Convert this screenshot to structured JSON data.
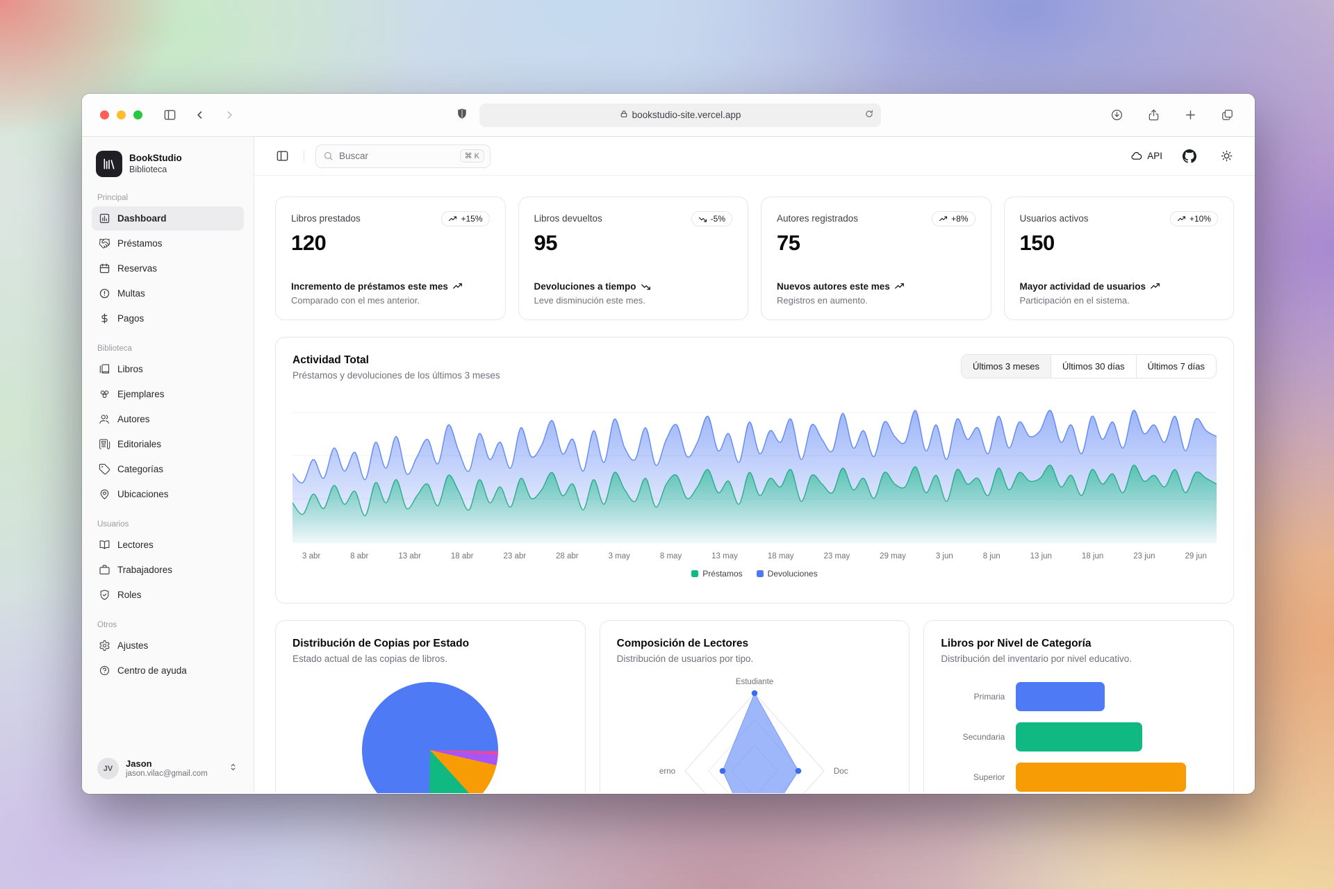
{
  "browser": {
    "url": "bookstudio-site.vercel.app",
    "controls": [
      "close",
      "minimize",
      "zoom",
      "sidebar",
      "back",
      "forward",
      "privacy-shield",
      "reload",
      "downloads",
      "share",
      "new-tab",
      "tab-overview"
    ]
  },
  "app": {
    "brand": {
      "name": "BookStudio",
      "subtitle": "Biblioteca"
    },
    "search": {
      "placeholder": "Buscar",
      "shortcut": "⌘ K"
    },
    "topbar": {
      "api_label": "API"
    },
    "sidebar": {
      "sections": [
        {
          "label": "Principal",
          "items": [
            {
              "label": "Dashboard",
              "icon": "chart-column",
              "active": true
            },
            {
              "label": "Préstamos",
              "icon": "handshake",
              "active": false
            },
            {
              "label": "Reservas",
              "icon": "calendar",
              "active": false
            },
            {
              "label": "Multas",
              "icon": "alert-circle",
              "active": false
            },
            {
              "label": "Pagos",
              "icon": "dollar",
              "active": false
            }
          ]
        },
        {
          "label": "Biblioteca",
          "items": [
            {
              "label": "Libros",
              "icon": "book-copy",
              "active": false
            },
            {
              "label": "Ejemplares",
              "icon": "circles",
              "active": false
            },
            {
              "label": "Autores",
              "icon": "users",
              "active": false
            },
            {
              "label": "Editoriales",
              "icon": "newspaper",
              "active": false
            },
            {
              "label": "Categorías",
              "icon": "tag",
              "active": false
            },
            {
              "label": "Ubicaciones",
              "icon": "map-pin",
              "active": false
            }
          ]
        },
        {
          "label": "Usuarios",
          "items": [
            {
              "label": "Lectores",
              "icon": "book-open",
              "active": false
            },
            {
              "label": "Trabajadores",
              "icon": "briefcase",
              "active": false
            },
            {
              "label": "Roles",
              "icon": "shield-check",
              "active": false
            }
          ]
        },
        {
          "label": "Otros",
          "items": [
            {
              "label": "Ajustes",
              "icon": "settings",
              "active": false
            },
            {
              "label": "Centro de ayuda",
              "icon": "help-circle",
              "active": false
            }
          ]
        }
      ],
      "user": {
        "initials": "JV",
        "name": "Jason",
        "email": "jason.vilac@gmail.com"
      }
    },
    "stats": [
      {
        "title": "Libros prestados",
        "badge": "+15%",
        "trend": "up",
        "value": "120",
        "line1": "Incremento de préstamos este mes",
        "line2": "Comparado con el mes anterior."
      },
      {
        "title": "Libros devueltos",
        "badge": "-5%",
        "trend": "down",
        "value": "95",
        "line1": "Devoluciones a tiempo",
        "line2": "Leve disminución este mes."
      },
      {
        "title": "Autores registrados",
        "badge": "+8%",
        "trend": "up",
        "value": "75",
        "line1": "Nuevos autores este mes",
        "line2": "Registros en aumento."
      },
      {
        "title": "Usuarios activos",
        "badge": "+10%",
        "trend": "up",
        "value": "150",
        "line1": "Mayor actividad de usuarios",
        "line2": "Participación en el sistema."
      }
    ],
    "activity_tabs": [
      {
        "label": "Últimos 3 meses",
        "active": true
      },
      {
        "label": "Últimos 30 días",
        "active": false
      },
      {
        "label": "Últimos 7 días",
        "active": false
      }
    ]
  },
  "colors": {
    "blue": "#4e7af5",
    "green": "#10b981",
    "orange": "#f89c05",
    "purple": "#a855f7",
    "pink": "#ec4899",
    "accent_text": "#18181b"
  },
  "chart_data": [
    {
      "type": "area",
      "title": "Actividad Total",
      "subtitle": "Préstamos y devoluciones de los últimos 3 meses",
      "x_ticks": [
        "3 abr",
        "8 abr",
        "13 abr",
        "18 abr",
        "23 abr",
        "28 abr",
        "3 may",
        "8 may",
        "13 may",
        "18 may",
        "23 may",
        "29 may",
        "3 jun",
        "8 jun",
        "13 jun",
        "18 jun",
        "23 jun",
        "29 jun"
      ],
      "ylim": [
        0,
        105
      ],
      "grid": true,
      "legend_position": "bottom",
      "series": [
        {
          "name": "Devoluciones",
          "color": "#4e7af5",
          "values": [
            48,
            42,
            58,
            45,
            66,
            50,
            63,
            44,
            70,
            52,
            74,
            48,
            60,
            72,
            55,
            82,
            64,
            50,
            76,
            58,
            70,
            52,
            80,
            60,
            68,
            85,
            62,
            72,
            50,
            78,
            56,
            86,
            66,
            58,
            80,
            54,
            72,
            82,
            60,
            70,
            88,
            64,
            76,
            56,
            84,
            62,
            78,
            70,
            86,
            58,
            82,
            72,
            64,
            90,
            66,
            78,
            60,
            84,
            74,
            70,
            92,
            64,
            82,
            58,
            86,
            72,
            80,
            62,
            88,
            66,
            84,
            74,
            78,
            92,
            70,
            82,
            62,
            88,
            72,
            84,
            66,
            92,
            76,
            82,
            70,
            88,
            64,
            86,
            78,
            74
          ]
        },
        {
          "name": "Préstamos",
          "color": "#10b981",
          "values": [
            28,
            20,
            34,
            24,
            40,
            27,
            36,
            19,
            42,
            28,
            44,
            24,
            33,
            41,
            26,
            47,
            36,
            23,
            44,
            28,
            39,
            25,
            45,
            31,
            37,
            49,
            33,
            41,
            23,
            44,
            27,
            49,
            37,
            29,
            45,
            25,
            41,
            47,
            31,
            39,
            51,
            35,
            43,
            27,
            49,
            33,
            45,
            39,
            51,
            29,
            47,
            41,
            35,
            52,
            37,
            45,
            31,
            49,
            41,
            39,
            53,
            35,
            47,
            29,
            51,
            41,
            45,
            33,
            52,
            37,
            49,
            43,
            45,
            54,
            39,
            47,
            33,
            51,
            41,
            48,
            35,
            54,
            43,
            47,
            39,
            51,
            35,
            49,
            45,
            41
          ]
        }
      ]
    },
    {
      "type": "pie",
      "title": "Distribución de Copias por Estado",
      "subtitle": "Estado actual de las copias de libros.",
      "labels_visible": false,
      "segments": [
        {
          "color": "#ec4899",
          "percent": 0.8
        },
        {
          "color": "#a855f7",
          "percent": 2.5
        },
        {
          "color": "#f89c05",
          "percent": 9.7
        },
        {
          "color": "#10b981",
          "percent": 12.0
        },
        {
          "color": "#4e7af5",
          "percent": 75.0
        }
      ],
      "start_angle_deg_css": 91
    },
    {
      "type": "radar",
      "title": "Composición de Lectores",
      "subtitle": "Distribución de usuarios por tipo.",
      "max": 100,
      "axes": [
        {
          "pos": "top",
          "label": "Estudiante",
          "value": 100
        },
        {
          "pos": "right",
          "label": "Doc",
          "value": 63
        },
        {
          "pos": "bottom",
          "label": "",
          "value": 88
        },
        {
          "pos": "left",
          "label": "erno",
          "value": 46
        }
      ],
      "fill_color": "#4e7af5"
    },
    {
      "type": "bar",
      "orientation": "horizontal",
      "title": "Libros por Nivel de Categoría",
      "subtitle": "Distribución del inventario por nivel educativo.",
      "categories": [
        "Primaria",
        "Secundaria",
        "Superior"
      ],
      "values": [
        52,
        74,
        100
      ],
      "value_unit": "percent_of_longest_bar_approx",
      "colors": [
        "#4e7af5",
        "#10b981",
        "#f89c05"
      ]
    }
  ]
}
